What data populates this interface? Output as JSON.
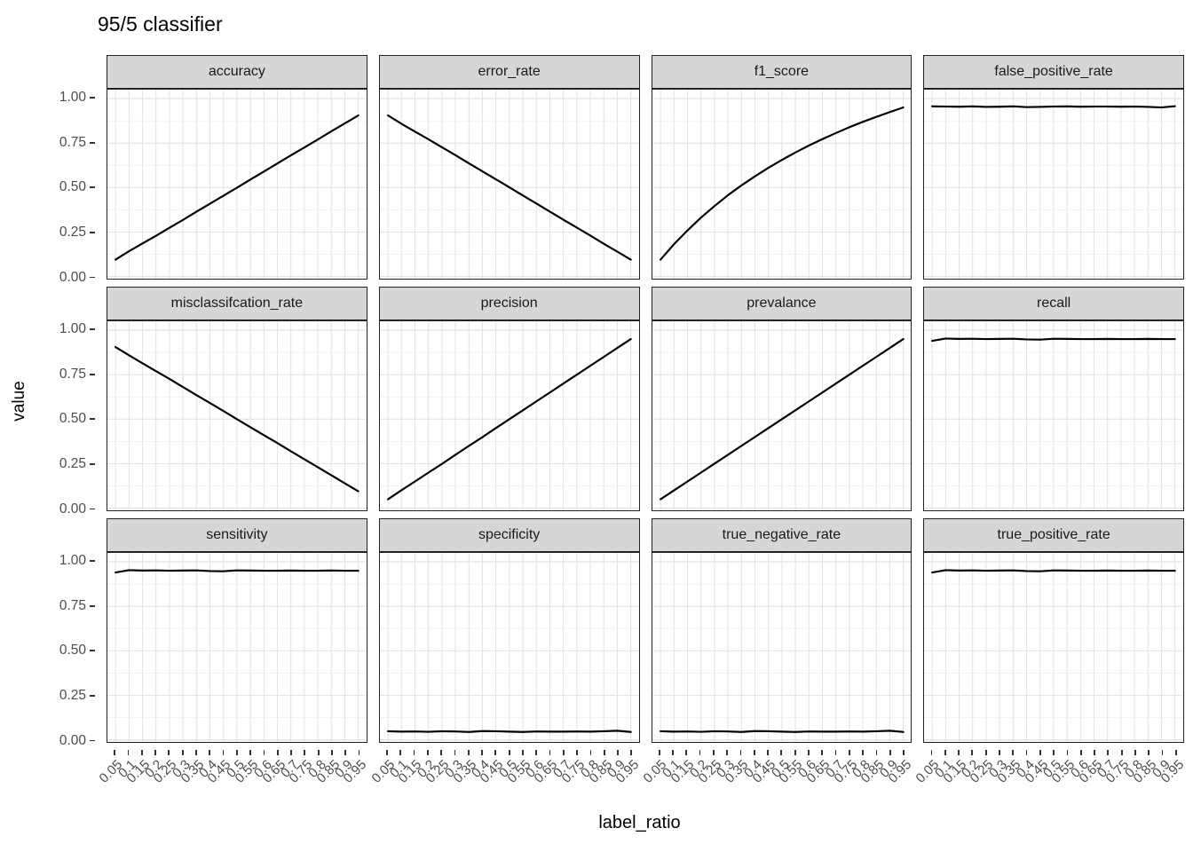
{
  "title": "95/5 classifier",
  "x_axis_label": "label_ratio",
  "y_axis_label": "value",
  "chart_data": {
    "type": "line",
    "title": "95/5 classifier",
    "xlabel": "label_ratio",
    "ylabel": "value",
    "legend": "none",
    "grid": "major-x discrete, major+minor y",
    "ylim": [
      0,
      1
    ],
    "y_minor_ticks": [
      0.125,
      0.375,
      0.625,
      0.875
    ],
    "y_ticks": [
      {
        "value": 1.0,
        "label": "1.00"
      },
      {
        "value": 0.75,
        "label": "0.75"
      },
      {
        "value": 0.5,
        "label": "0.50"
      },
      {
        "value": 0.25,
        "label": "0.25"
      },
      {
        "value": 0.0,
        "label": "0.00"
      }
    ],
    "x": [
      0.05,
      0.1,
      0.15,
      0.2,
      0.25,
      0.3,
      0.35,
      0.4,
      0.45,
      0.5,
      0.55,
      0.6,
      0.65,
      0.7,
      0.75,
      0.8,
      0.85,
      0.9,
      0.95
    ],
    "x_tick_labels": [
      "0.05",
      "0.1",
      "0.15",
      "0.2",
      "0.25",
      "0.3",
      "0.35",
      "0.4",
      "0.45",
      "0.5",
      "0.55",
      "0.6",
      "0.65",
      "0.7",
      "0.75",
      "0.8",
      "0.85",
      "0.9",
      "0.95"
    ],
    "facets": [
      {
        "label": "accuracy",
        "values": [
          0.095,
          0.142,
          0.186,
          0.229,
          0.274,
          0.318,
          0.364,
          0.409,
          0.454,
          0.499,
          0.545,
          0.59,
          0.635,
          0.681,
          0.725,
          0.77,
          0.816,
          0.86,
          0.905
        ]
      },
      {
        "label": "error_rate",
        "values": [
          0.905,
          0.858,
          0.814,
          0.771,
          0.726,
          0.682,
          0.636,
          0.591,
          0.546,
          0.501,
          0.455,
          0.41,
          0.365,
          0.319,
          0.275,
          0.23,
          0.184,
          0.14,
          0.095
        ]
      },
      {
        "label": "f1_score",
        "values": [
          0.095,
          0.182,
          0.259,
          0.331,
          0.396,
          0.457,
          0.512,
          0.563,
          0.611,
          0.655,
          0.697,
          0.736,
          0.772,
          0.806,
          0.839,
          0.869,
          0.897,
          0.924,
          0.95
        ]
      },
      {
        "label": "false_positive_rate",
        "values": [
          0.956,
          0.955,
          0.954,
          0.956,
          0.953,
          0.954,
          0.956,
          0.952,
          0.953,
          0.955,
          0.956,
          0.954,
          0.955,
          0.955,
          0.954,
          0.955,
          0.953,
          0.95,
          0.957
        ]
      },
      {
        "label": "misclassifcation_rate",
        "values": [
          0.905,
          0.859,
          0.814,
          0.77,
          0.726,
          0.681,
          0.635,
          0.591,
          0.546,
          0.5,
          0.455,
          0.41,
          0.366,
          0.32,
          0.275,
          0.23,
          0.185,
          0.14,
          0.095
        ]
      },
      {
        "label": "precision",
        "values": [
          0.05,
          0.101,
          0.15,
          0.2,
          0.249,
          0.3,
          0.35,
          0.399,
          0.45,
          0.5,
          0.55,
          0.6,
          0.65,
          0.7,
          0.75,
          0.8,
          0.85,
          0.9,
          0.95
        ]
      },
      {
        "label": "prevalance",
        "values": [
          0.05,
          0.1,
          0.15,
          0.2,
          0.25,
          0.3,
          0.35,
          0.4,
          0.45,
          0.5,
          0.55,
          0.6,
          0.65,
          0.7,
          0.75,
          0.8,
          0.85,
          0.9,
          0.95
        ]
      },
      {
        "label": "recall",
        "values": [
          0.94,
          0.953,
          0.951,
          0.952,
          0.95,
          0.951,
          0.952,
          0.948,
          0.947,
          0.952,
          0.951,
          0.95,
          0.95,
          0.951,
          0.95,
          0.95,
          0.951,
          0.95,
          0.95
        ]
      },
      {
        "label": "sensitivity",
        "values": [
          0.94,
          0.953,
          0.951,
          0.952,
          0.95,
          0.951,
          0.952,
          0.948,
          0.947,
          0.952,
          0.951,
          0.95,
          0.95,
          0.951,
          0.95,
          0.95,
          0.951,
          0.95,
          0.95
        ]
      },
      {
        "label": "specificity",
        "values": [
          0.048,
          0.046,
          0.047,
          0.045,
          0.048,
          0.047,
          0.044,
          0.049,
          0.048,
          0.046,
          0.044,
          0.047,
          0.046,
          0.046,
          0.047,
          0.046,
          0.048,
          0.051,
          0.044
        ]
      },
      {
        "label": "true_negative_rate",
        "values": [
          0.048,
          0.046,
          0.047,
          0.045,
          0.048,
          0.047,
          0.044,
          0.049,
          0.048,
          0.046,
          0.044,
          0.047,
          0.046,
          0.046,
          0.047,
          0.046,
          0.048,
          0.051,
          0.044
        ]
      },
      {
        "label": "true_positive_rate",
        "values": [
          0.94,
          0.953,
          0.951,
          0.952,
          0.95,
          0.951,
          0.952,
          0.948,
          0.947,
          0.952,
          0.951,
          0.95,
          0.95,
          0.951,
          0.95,
          0.95,
          0.951,
          0.95,
          0.95
        ]
      }
    ],
    "colors": {
      "line": "#000000",
      "strip_fill": "#d6d6d6",
      "strip_border": "#222222",
      "panel_border": "#222222",
      "grid_major": "#e4e4e4",
      "grid_minor": "#efefef",
      "axis_text": "#4d4d4d",
      "tick": "#333333"
    }
  }
}
